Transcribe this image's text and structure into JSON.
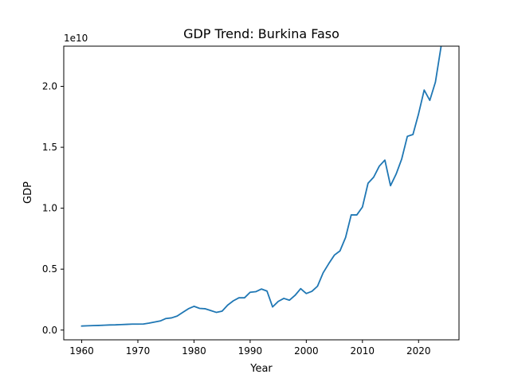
{
  "chart_data": {
    "type": "line",
    "title": "GDP Trend: Burkina Faso",
    "xlabel": "Year",
    "ylabel": "GDP",
    "y_offset_text": "1e10",
    "xlim": [
      1956.8,
      2027.2
    ],
    "ylim": [
      -0.08,
      2.33
    ],
    "y_scale_note": "values in units of 1e10",
    "x_ticks": [
      1960,
      1970,
      1980,
      1990,
      2000,
      2010,
      2020
    ],
    "y_ticks": [
      "0.0",
      "0.5",
      "1.0",
      "1.5",
      "2.0"
    ],
    "grid": false,
    "legend": "none",
    "series": [
      {
        "color": "#1f77b4",
        "x": [
          1960,
          1961,
          1962,
          1963,
          1964,
          1965,
          1966,
          1967,
          1968,
          1969,
          1970,
          1971,
          1972,
          1973,
          1974,
          1975,
          1976,
          1977,
          1978,
          1979,
          1980,
          1981,
          1982,
          1983,
          1984,
          1985,
          1986,
          1987,
          1988,
          1989,
          1990,
          1991,
          1992,
          1993,
          1994,
          1995,
          1996,
          1997,
          1998,
          1999,
          2000,
          2001,
          2002,
          2003,
          2004,
          2005,
          2006,
          2007,
          2008,
          2009,
          2010,
          2011,
          2012,
          2013,
          2014,
          2015,
          2016,
          2017,
          2018,
          2019,
          2020,
          2021,
          2022,
          2023,
          2024
        ],
        "y": [
          0.033,
          0.035,
          0.037,
          0.038,
          0.04,
          0.042,
          0.043,
          0.045,
          0.047,
          0.049,
          0.049,
          0.05,
          0.057,
          0.066,
          0.075,
          0.095,
          0.1,
          0.115,
          0.145,
          0.175,
          0.195,
          0.178,
          0.175,
          0.16,
          0.145,
          0.155,
          0.205,
          0.24,
          0.265,
          0.265,
          0.31,
          0.315,
          0.337,
          0.32,
          0.19,
          0.235,
          0.26,
          0.245,
          0.285,
          0.34,
          0.3,
          0.318,
          0.36,
          0.47,
          0.545,
          0.615,
          0.65,
          0.76,
          0.945,
          0.945,
          1.01,
          1.205,
          1.255,
          1.345,
          1.395,
          1.185,
          1.28,
          1.405,
          1.59,
          1.605,
          1.775,
          1.97,
          1.885,
          2.035,
          2.325
        ]
      }
    ]
  }
}
